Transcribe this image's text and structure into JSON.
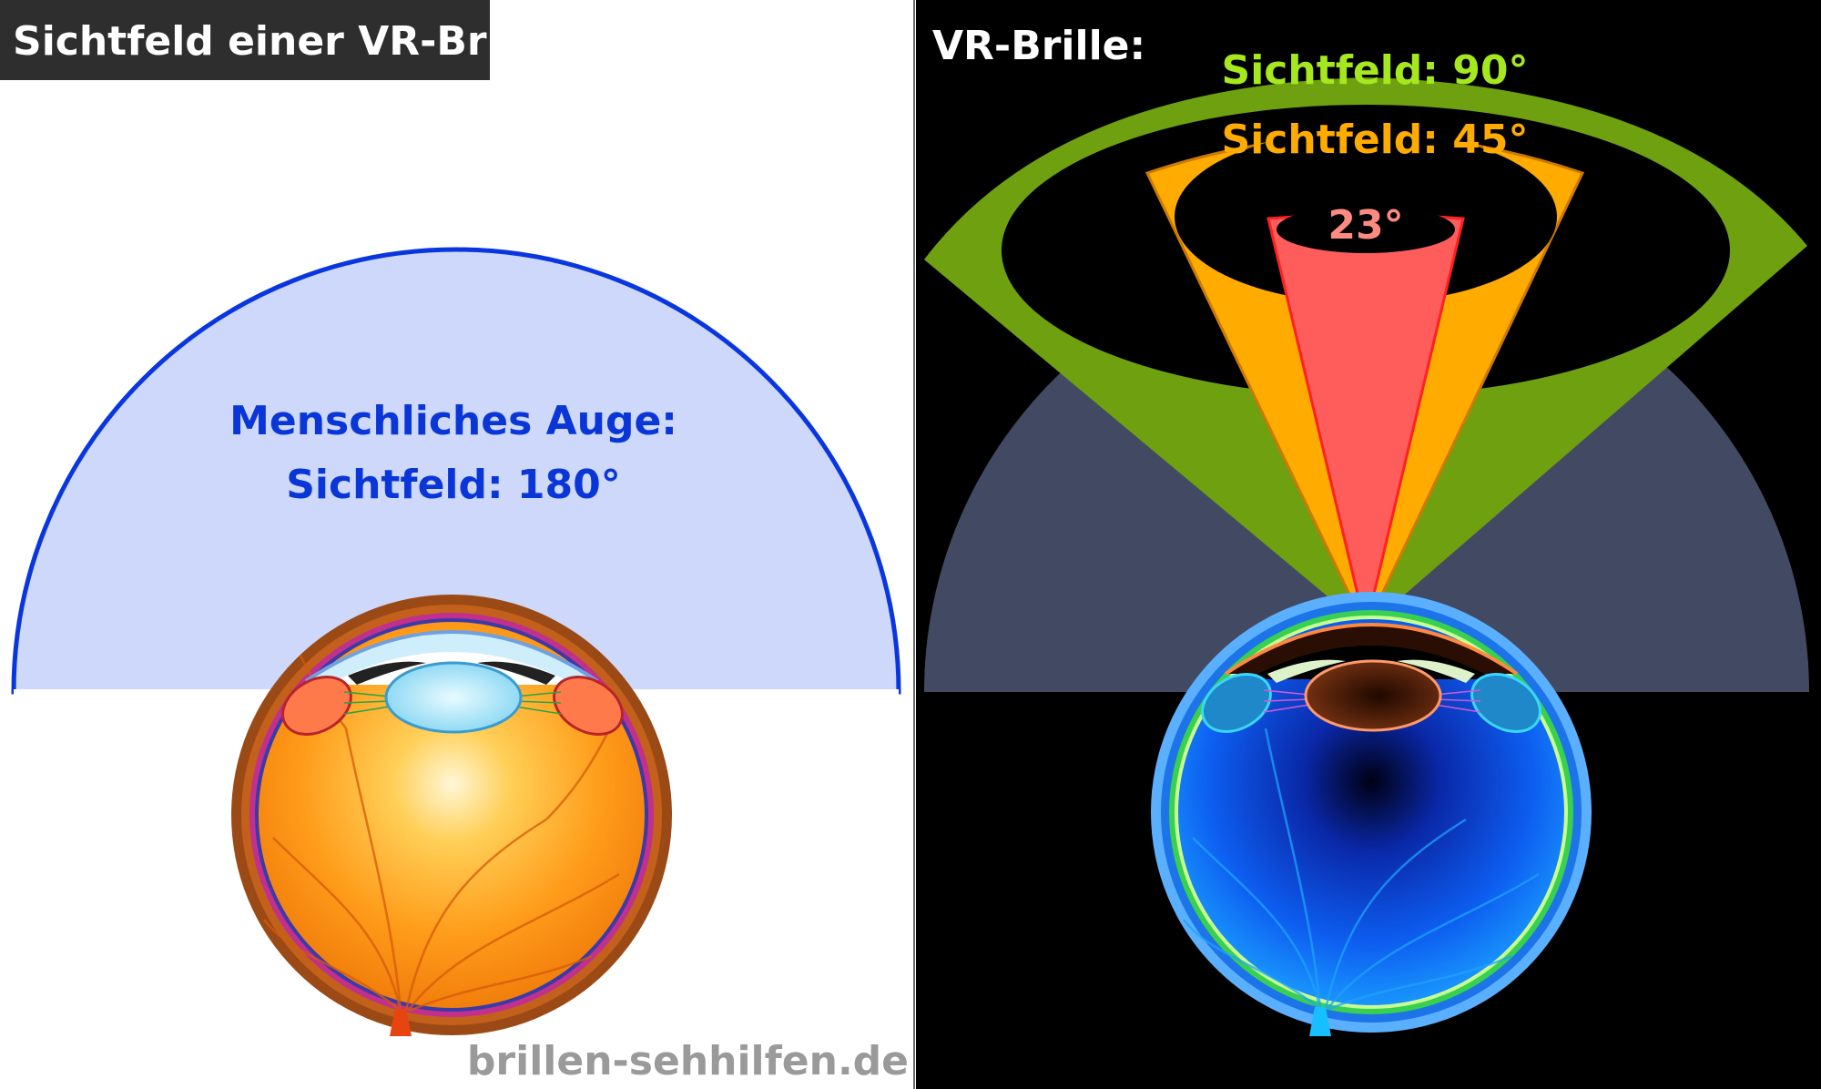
{
  "title_badge": "Sichtfeld einer VR-Brille",
  "left_panel": {
    "line1": "Menschliches Auge:",
    "line2": "Sichtfeld: 180°"
  },
  "right_panel": {
    "heading": "VR-Brille:",
    "fov_90": "Sichtfeld: 90°",
    "fov_45": "Sichtfeld: 45°",
    "fov_23": "23°"
  },
  "watermark": "brillen-sehhilfen.de",
  "colors": {
    "human_fov_fill": "#cdd8fb",
    "human_fov_stroke": "#0a36e0",
    "human_label": "#0a36d8",
    "fov_90": "#6fa010",
    "fov_90_label": "#a6e81e",
    "fov_45": "#ffab00",
    "fov_23": "#ff5c5c",
    "fov_23_label": "#ff8a80",
    "grey_fov": "#424a63",
    "badge_bg": "#2e2e2e",
    "watermark": "#9a9a9a"
  }
}
